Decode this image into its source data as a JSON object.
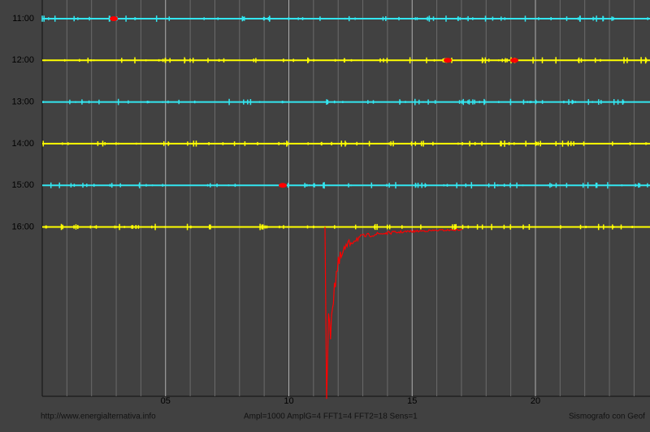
{
  "traces": [
    {
      "label": "11:00",
      "color": "#33e6f0"
    },
    {
      "label": "12:00",
      "color": "#ffff00"
    },
    {
      "label": "13:00",
      "color": "#33e6f0"
    },
    {
      "label": "14:00",
      "color": "#ffff00"
    },
    {
      "label": "15:00",
      "color": "#33e6f0"
    },
    {
      "label": "16:00",
      "color": "#ffff00"
    }
  ],
  "x_axis": {
    "labels": [
      "05",
      "10",
      "15",
      "20"
    ]
  },
  "footer": {
    "left": "http://www.energialternativa.info",
    "center": "Ampl=1000 AmplG=4 FFT1=4 FFT2=18 Sens=1",
    "right": "Sismografo con Geof"
  }
}
